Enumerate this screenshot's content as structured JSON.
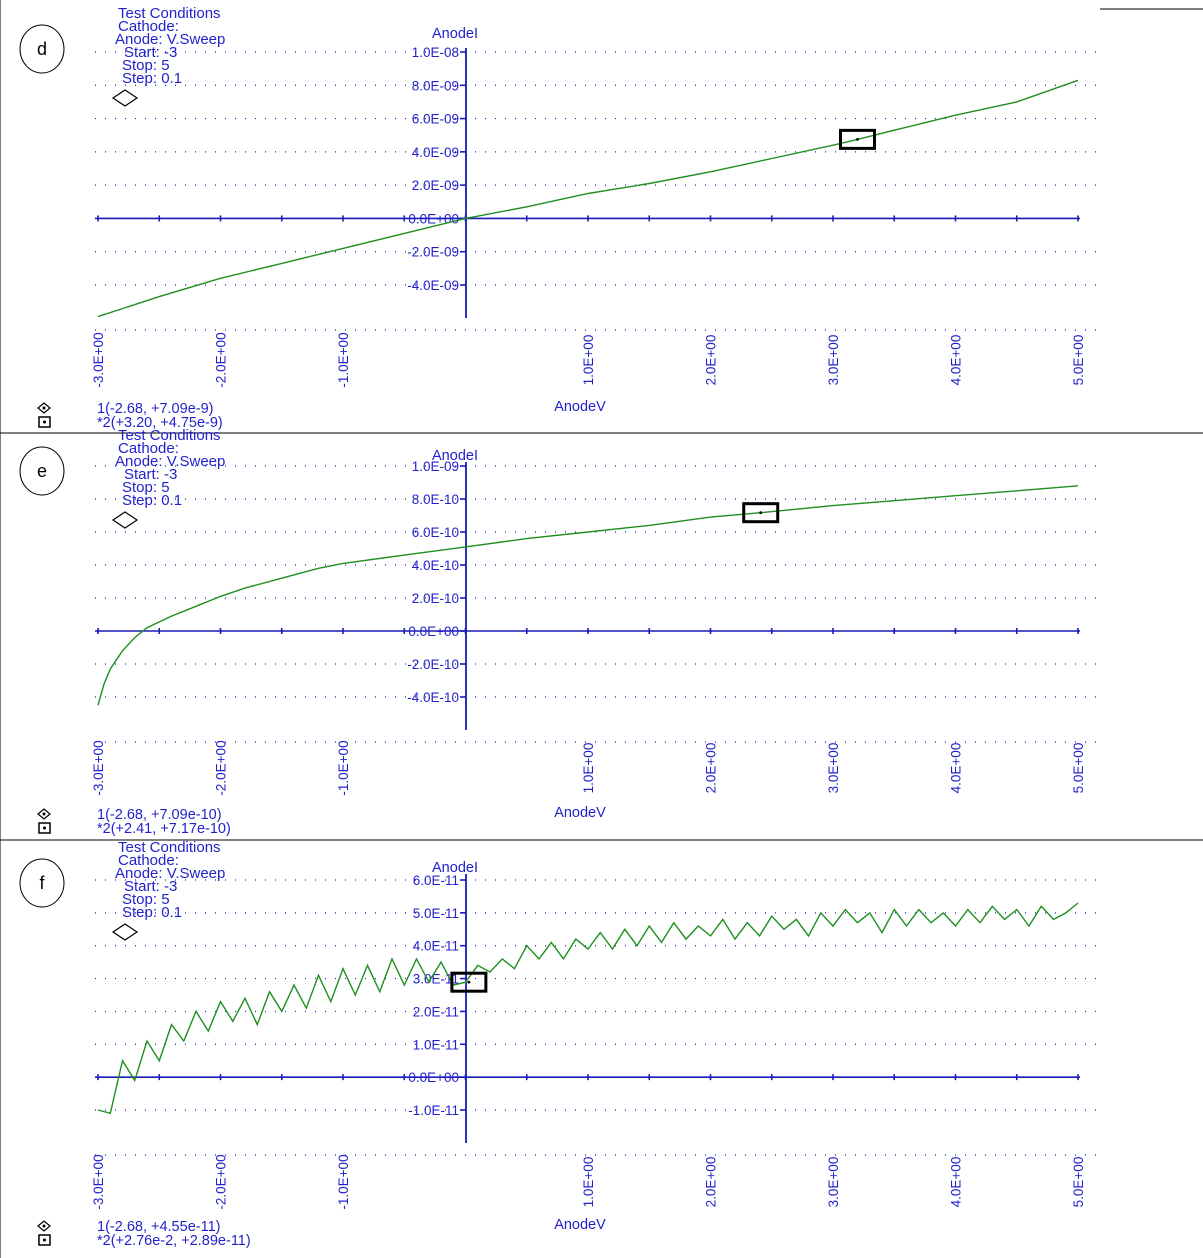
{
  "chart_data": [
    {
      "type": "line",
      "panel_label": "d",
      "conditions": [
        "Test Conditions",
        "Cathode:",
        "Anode: V.Sweep",
        "Start: -3",
        "Stop: 5",
        "Step: 0.1"
      ],
      "xlabel": "AnodeV",
      "ylabel": "AnodeI",
      "xlim": [
        -3,
        5
      ],
      "ylim": [
        -6e-09,
        1e-08
      ],
      "x_ticks": [
        -3,
        -2,
        -1,
        1,
        2,
        3,
        4,
        5
      ],
      "x_tick_labels": [
        "-3.0E+00",
        "-2.0E+00",
        "-1.0E+00",
        "1.0E+00",
        "2.0E+00",
        "3.0E+00",
        "4.0E+00",
        "5.0E+00"
      ],
      "y_ticks": [
        1e-08,
        8e-09,
        6e-09,
        4e-09,
        2e-09,
        0,
        -2e-09,
        -4e-09
      ],
      "y_tick_labels": [
        "1.0E-08",
        "8.0E-09",
        "6.0E-09",
        "4.0E-09",
        "2.0E-09",
        "0.0E+00",
        "-2.0E-09",
        "-4.0E-09"
      ],
      "grid": true,
      "series": [
        {
          "color": "#1f8f1f",
          "x": [
            -3.0,
            -2.5,
            -2.0,
            -1.5,
            -1.0,
            -0.5,
            0.0,
            0.5,
            1.0,
            1.5,
            2.0,
            2.5,
            3.0,
            3.2,
            3.5,
            4.0,
            4.5,
            5.0
          ],
          "y": [
            -5.9e-09,
            -4.7e-09,
            -3.6e-09,
            -2.7e-09,
            -1.8e-09,
            -9e-10,
            0.0,
            7e-10,
            1.5e-09,
            2.1e-09,
            2.8e-09,
            3.6e-09,
            4.4e-09,
            4.75e-09,
            5.3e-09,
            6.2e-09,
            7e-09,
            8.3e-09
          ]
        }
      ],
      "cursor1": {
        "label": "1(-2.68, +7.09e-9)"
      },
      "cursor2": {
        "label": "*2(+3.20, +4.75e-9)",
        "x": 3.2,
        "y": 4.75e-09
      }
    },
    {
      "type": "line",
      "panel_label": "e",
      "conditions": [
        "Test Conditions",
        "Cathode:",
        "Anode: V.Sweep",
        "Start: -3",
        "Stop: 5",
        "Step: 0.1"
      ],
      "xlabel": "AnodeV",
      "ylabel": "AnodeI",
      "xlim": [
        -3,
        5
      ],
      "ylim": [
        -6e-10,
        1e-09
      ],
      "x_ticks": [
        -3,
        -2,
        -1,
        1,
        2,
        3,
        4,
        5
      ],
      "x_tick_labels": [
        "-3.0E+00",
        "-2.0E+00",
        "-1.0E+00",
        "1.0E+00",
        "2.0E+00",
        "3.0E+00",
        "4.0E+00",
        "5.0E+00"
      ],
      "y_ticks": [
        1e-09,
        8e-10,
        6e-10,
        4e-10,
        2e-10,
        0,
        -2e-10,
        -4e-10
      ],
      "y_tick_labels": [
        "1.0E-09",
        "8.0E-10",
        "6.0E-10",
        "4.0E-10",
        "2.0E-10",
        "0.0E+00",
        "-2.0E-10",
        "-4.0E-10"
      ],
      "grid": true,
      "series": [
        {
          "color": "#1f8f1f",
          "x": [
            -3.0,
            -2.95,
            -2.9,
            -2.8,
            -2.7,
            -2.6,
            -2.4,
            -2.2,
            -2.0,
            -1.8,
            -1.5,
            -1.2,
            -1.0,
            -0.5,
            0.0,
            0.5,
            1.0,
            1.5,
            2.0,
            2.41,
            3.0,
            3.5,
            4.0,
            4.5,
            5.0
          ],
          "y": [
            -4.5e-10,
            -3.2e-10,
            -2.3e-10,
            -1.2e-10,
            -4e-11,
            2e-11,
            9e-11,
            1.5e-10,
            2.1e-10,
            2.6e-10,
            3.2e-10,
            3.8e-10,
            4.1e-10,
            4.6e-10,
            5.1e-10,
            5.6e-10,
            6e-10,
            6.4e-10,
            6.9e-10,
            7.17e-10,
            7.6e-10,
            7.9e-10,
            8.2e-10,
            8.5e-10,
            8.8e-10
          ]
        }
      ],
      "cursor1": {
        "label": "1(-2.68, +7.09e-10)"
      },
      "cursor2": {
        "label": "*2(+2.41, +7.17e-10)",
        "x": 2.41,
        "y": 7.17e-10
      }
    },
    {
      "type": "line",
      "panel_label": "f",
      "conditions": [
        "Test Conditions",
        "Cathode:",
        "Anode: V.Sweep",
        "Start: -3",
        "Stop: 5",
        "Step: 0.1"
      ],
      "xlabel": "AnodeV",
      "ylabel": "AnodeI",
      "xlim": [
        -3,
        5
      ],
      "ylim": [
        -1.8e-11,
        6e-11
      ],
      "x_ticks": [
        -3,
        -2,
        -1,
        1,
        2,
        3,
        4,
        5
      ],
      "x_tick_labels": [
        "-3.0E+00",
        "-2.0E+00",
        "-1.0E+00",
        "1.0E+00",
        "2.0E+00",
        "3.0E+00",
        "4.0E+00",
        "5.0E+00"
      ],
      "y_ticks": [
        6e-11,
        5e-11,
        4e-11,
        3e-11,
        2e-11,
        1e-11,
        0,
        -1e-11
      ],
      "y_tick_labels": [
        "6.0E-11",
        "5.0E-11",
        "4.0E-11",
        "3.0E-11",
        "2.0E-11",
        "1.0E-11",
        "0.0E+00",
        "-1.0E-11"
      ],
      "grid": true,
      "series": [
        {
          "color": "#1f8f1f",
          "x": [
            -3.0,
            -2.9,
            -2.8,
            -2.7,
            -2.6,
            -2.5,
            -2.4,
            -2.3,
            -2.2,
            -2.1,
            -2.0,
            -1.9,
            -1.8,
            -1.7,
            -1.6,
            -1.5,
            -1.4,
            -1.3,
            -1.2,
            -1.1,
            -1.0,
            -0.9,
            -0.8,
            -0.7,
            -0.6,
            -0.5,
            -0.4,
            -0.3,
            -0.2,
            -0.1,
            0.0,
            0.1,
            0.2,
            0.3,
            0.4,
            0.5,
            0.6,
            0.7,
            0.8,
            0.9,
            1.0,
            1.1,
            1.2,
            1.3,
            1.4,
            1.5,
            1.6,
            1.7,
            1.8,
            1.9,
            2.0,
            2.1,
            2.2,
            2.3,
            2.4,
            2.5,
            2.6,
            2.7,
            2.8,
            2.9,
            3.0,
            3.1,
            3.2,
            3.3,
            3.4,
            3.5,
            3.6,
            3.7,
            3.8,
            3.9,
            4.0,
            4.1,
            4.2,
            4.3,
            4.4,
            4.5,
            4.6,
            4.7,
            4.8,
            4.9,
            5.0
          ],
          "y": [
            -1e-11,
            -1.1e-11,
            5e-12,
            -1e-12,
            1.1e-11,
            5e-12,
            1.6e-11,
            1.1e-11,
            2e-11,
            1.4e-11,
            2.3e-11,
            1.7e-11,
            2.4e-11,
            1.6e-11,
            2.6e-11,
            2e-11,
            2.8e-11,
            2.1e-11,
            3.1e-11,
            2.3e-11,
            3.3e-11,
            2.5e-11,
            3.4e-11,
            2.6e-11,
            3.6e-11,
            2.8e-11,
            3.6e-11,
            2.9e-11,
            3.5e-11,
            2.8e-11,
            2.89e-11,
            3.4e-11,
            3.2e-11,
            3.6e-11,
            3.3e-11,
            4e-11,
            3.6e-11,
            4.1e-11,
            3.6e-11,
            4.2e-11,
            3.9e-11,
            4.4e-11,
            3.9e-11,
            4.5e-11,
            4e-11,
            4.6e-11,
            4.1e-11,
            4.7e-11,
            4.2e-11,
            4.6e-11,
            4.3e-11,
            4.8e-11,
            4.2e-11,
            4.7e-11,
            4.3e-11,
            4.9e-11,
            4.5e-11,
            4.8e-11,
            4.3e-11,
            5e-11,
            4.6e-11,
            5.1e-11,
            4.7e-11,
            5e-11,
            4.4e-11,
            5.1e-11,
            4.6e-11,
            5.1e-11,
            4.7e-11,
            5e-11,
            4.6e-11,
            5.1e-11,
            4.7e-11,
            5.2e-11,
            4.8e-11,
            5.1e-11,
            4.6e-11,
            5.2e-11,
            4.8e-11,
            5e-11,
            5.3e-11
          ]
        }
      ],
      "cursor1": {
        "label": "1(-2.68, +4.55e-11)"
      },
      "cursor2": {
        "label": "*2(+2.76e-2, +2.89e-11)",
        "x": 0.0276,
        "y": 2.89e-11
      }
    }
  ],
  "colors": {
    "axis": "#1a1ab8",
    "text": "#2222cc",
    "grid": "#2222aa",
    "series": "#1f8f1f",
    "frame": "#000000"
  }
}
